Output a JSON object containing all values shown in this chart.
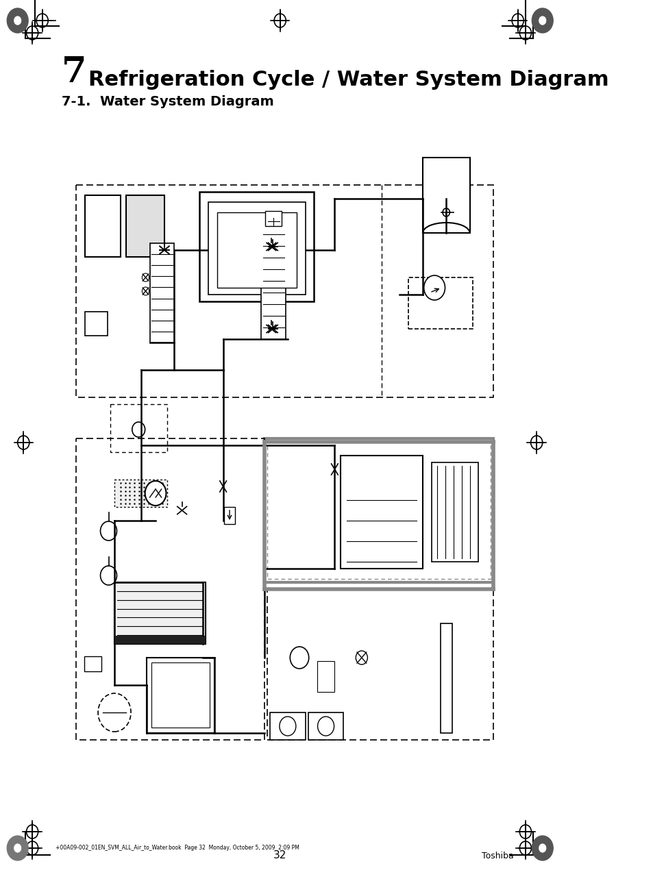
{
  "title_number": "7",
  "title_text": "Refrigeration Cycle / Water System Diagram",
  "subtitle": "7-1.  Water System Diagram",
  "page_number": "32",
  "header_text": "+00A09-002_01EN_SVM_ALL_Air_to_Water.book  Page 32  Monday, October 5, 2009  2:09 PM",
  "footer_brand": "Toshiba",
  "bg_color": "#ffffff",
  "line_color": "#000000",
  "gray_line_color": "#808080",
  "dash_color": "#555555"
}
